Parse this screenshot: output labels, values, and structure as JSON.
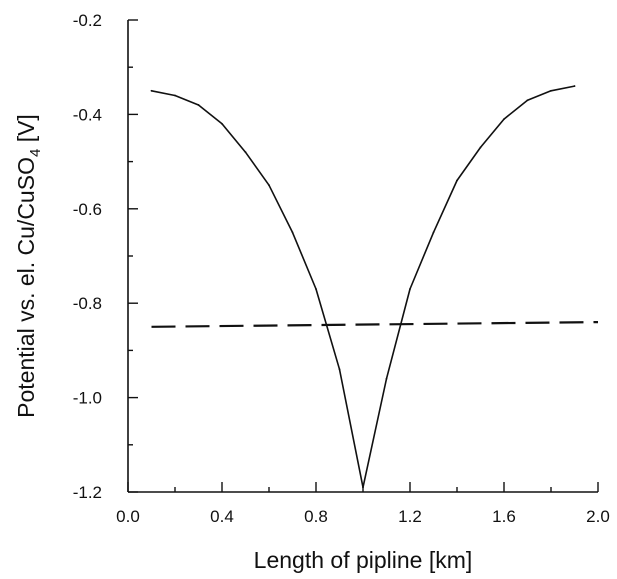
{
  "chart_data": {
    "type": "line",
    "title": "",
    "xlabel": "Length of pipline [km]",
    "ylabel_parts": [
      "Potential vs. el. Cu/CuSO",
      "4",
      " [V]"
    ],
    "xlim": [
      0.0,
      2.0
    ],
    "ylim": [
      -1.2,
      -0.2
    ],
    "x_major_ticks": [
      0.0,
      0.4,
      0.8,
      1.2,
      1.6,
      2.0
    ],
    "x_tick_labels": [
      "0.0",
      "0.4",
      "0.8",
      "1.2",
      "1.6",
      "2.0"
    ],
    "x_minor_ticks": [
      0.2,
      0.6,
      1.0,
      1.4,
      1.8
    ],
    "y_major_ticks": [
      -0.2,
      -0.4,
      -0.6,
      -0.8,
      -1.0,
      -1.2
    ],
    "y_tick_labels": [
      "-0.2",
      "-0.4",
      "-0.6",
      "-0.8",
      "-1.0",
      "-1.2"
    ],
    "y_minor_ticks": [
      -0.3,
      -0.5,
      -0.7,
      -0.9,
      -1.1
    ],
    "grid": false,
    "legend": "none",
    "series": [
      {
        "style": "solid",
        "color": "#111111",
        "x": [
          0.1,
          0.2,
          0.3,
          0.4,
          0.5,
          0.6,
          0.7,
          0.8,
          0.9,
          1.0,
          1.1,
          1.2,
          1.3,
          1.4,
          1.5,
          1.6,
          1.7,
          1.8,
          1.9
        ],
        "y": [
          -0.35,
          -0.36,
          -0.38,
          -0.42,
          -0.48,
          -0.55,
          -0.65,
          -0.77,
          -0.94,
          -1.19,
          -0.96,
          -0.77,
          -0.65,
          -0.54,
          -0.47,
          -0.41,
          -0.37,
          -0.35,
          -0.34
        ]
      },
      {
        "style": "dashed",
        "color": "#111111",
        "x": [
          0.1,
          2.0
        ],
        "y": [
          -0.85,
          -0.84
        ]
      }
    ]
  }
}
